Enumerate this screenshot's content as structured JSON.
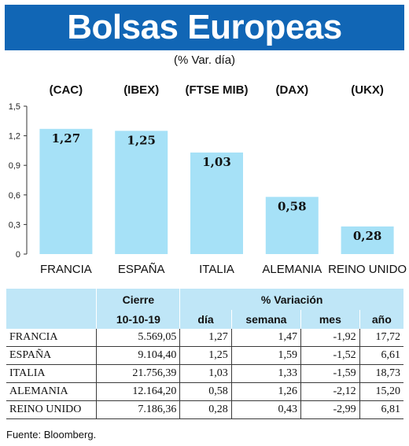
{
  "title": "Bolsas Europeas",
  "subtitle": "(% Var. día)",
  "chart_data": {
    "type": "bar",
    "index_labels": [
      "(CAC)",
      "(IBEX)",
      "(FTSE MIB)",
      "(DAX)",
      "(UKX)"
    ],
    "categories": [
      "FRANCIA",
      "ESPAÑA",
      "ITALIA",
      "ALEMANIA",
      "REINO UNIDO"
    ],
    "values": [
      1.27,
      1.25,
      1.03,
      0.58,
      0.28
    ],
    "value_labels": [
      "1,27",
      "1,25",
      "1,03",
      "0,58",
      "0,28"
    ],
    "yticks": [
      "0",
      "0,3",
      "0,6",
      "0,9",
      "1,2",
      "1,5"
    ],
    "ylim": [
      0,
      1.5
    ],
    "bar_color": "#a6e1f7",
    "grid": false
  },
  "table": {
    "header_cierre": "Cierre",
    "header_variacion": "% Variación",
    "date": "10-10-19",
    "col_dia": "día",
    "col_semana": "semana",
    "col_mes": "mes",
    "col_ano": "año",
    "rows": [
      {
        "name": "FRANCIA",
        "cierre": "5.569,05",
        "dia": "1,27",
        "semana": "1,47",
        "mes": "-1,92",
        "ano": "17,72"
      },
      {
        "name": "ESPAÑA",
        "cierre": "9.104,40",
        "dia": "1,25",
        "semana": "1,59",
        "mes": "-1,52",
        "ano": "6,61"
      },
      {
        "name": "ITALIA",
        "cierre": "21.756,39",
        "dia": "1,03",
        "semana": "1,33",
        "mes": "-1,59",
        "ano": "18,73"
      },
      {
        "name": "ALEMANIA",
        "cierre": "12.164,20",
        "dia": "0,58",
        "semana": "1,26",
        "mes": "-2,12",
        "ano": "15,20"
      },
      {
        "name": "REINO UNIDO",
        "cierre": "7.186,36",
        "dia": "0,28",
        "semana": "0,43",
        "mes": "-2,99",
        "ano": "6,81"
      }
    ]
  },
  "source": "Fuente: Bloomberg.",
  "colors": {
    "title_bg": "#1166b5",
    "header_bg": "#bfe6f7"
  }
}
